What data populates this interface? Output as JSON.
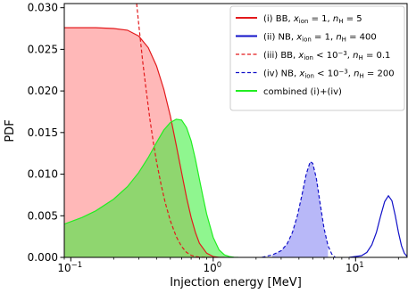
{
  "chart_data": {
    "type": "area",
    "xlabel": "Injection energy [MeV]",
    "ylabel": "PDF",
    "xscale": "log",
    "xlim": [
      0.09,
      23
    ],
    "ylim": [
      0,
      0.0305
    ],
    "x_ticks": [
      {
        "value": 0.1,
        "base": "10",
        "exp": "−1"
      },
      {
        "value": 1,
        "base": "10",
        "exp": "0"
      },
      {
        "value": 10,
        "base": "10",
        "exp": "1"
      }
    ],
    "y_ticks": [
      {
        "value": 0.0,
        "label": "0.000"
      },
      {
        "value": 0.005,
        "label": "0.005"
      },
      {
        "value": 0.01,
        "label": "0.010"
      },
      {
        "value": 0.015,
        "label": "0.015"
      },
      {
        "value": 0.02,
        "label": "0.020"
      },
      {
        "value": 0.025,
        "label": "0.025"
      },
      {
        "value": 0.03,
        "label": "0.030"
      }
    ],
    "legend_position": "top-right",
    "series": [
      {
        "key": "i",
        "name": "(i) BB, x_ion = 1, n_H = 5",
        "legend_parts": [
          [
            "(i) BB, ",
            ""
          ],
          [
            "x",
            "i"
          ],
          [
            "ion",
            "sub"
          ],
          [
            " = 1, ",
            ""
          ],
          [
            "n",
            "i"
          ],
          [
            "H",
            "sub"
          ],
          [
            " = 5",
            ""
          ]
        ],
        "color": "#e31a1c",
        "style": "solid",
        "fill": "#ff9a9a",
        "fill_opacity": 0.7,
        "x": [
          0.09,
          0.15,
          0.2,
          0.25,
          0.3,
          0.35,
          0.4,
          0.45,
          0.5,
          0.55,
          0.6,
          0.65,
          0.7,
          0.75,
          0.8,
          0.9,
          1.0,
          1.1,
          1.2
        ],
        "y": [
          0.0276,
          0.0276,
          0.0275,
          0.0273,
          0.0266,
          0.0252,
          0.023,
          0.0202,
          0.017,
          0.0135,
          0.0102,
          0.0072,
          0.0048,
          0.003,
          0.0017,
          0.0005,
          0.0001,
          0.0,
          0.0
        ]
      },
      {
        "key": "ii",
        "name": "(ii) NB, x_ion = 1, n_H = 400",
        "legend_parts": [
          [
            "(ii) NB, ",
            ""
          ],
          [
            "x",
            "i"
          ],
          [
            "ion",
            "sub"
          ],
          [
            " = 1, ",
            ""
          ],
          [
            "n",
            "i"
          ],
          [
            "H",
            "sub"
          ],
          [
            " = 400",
            ""
          ]
        ],
        "color": "#1010c8",
        "style": "solid",
        "fill": null,
        "x": [
          9,
          11,
          12,
          13,
          14,
          15,
          16,
          17,
          18,
          19,
          20,
          21,
          22,
          23
        ],
        "y": [
          0.0,
          0.0002,
          0.0006,
          0.0015,
          0.003,
          0.005,
          0.0067,
          0.0074,
          0.0068,
          0.005,
          0.003,
          0.0014,
          0.0005,
          0.0001
        ]
      },
      {
        "key": "iii",
        "name": "(iii) BB, x_ion < 10^-3, n_H = 0.1",
        "legend_parts": [
          [
            "(iii) BB, ",
            ""
          ],
          [
            "x",
            "i"
          ],
          [
            "ion",
            "sub"
          ],
          [
            " < 10",
            ""
          ],
          [
            "−3",
            "sup"
          ],
          [
            ", ",
            ""
          ],
          [
            "n",
            "i"
          ],
          [
            "H",
            "sub"
          ],
          [
            " = 0.1",
            ""
          ]
        ],
        "color": "#e31a1c",
        "style": "dashed",
        "fill": null,
        "x": [
          0.29,
          0.3,
          0.32,
          0.34,
          0.36,
          0.38,
          0.4,
          0.43,
          0.46,
          0.5,
          0.55,
          0.6,
          0.65,
          0.7,
          0.75,
          0.8,
          0.9,
          1.0
        ],
        "y": [
          0.0305,
          0.028,
          0.0235,
          0.0198,
          0.0165,
          0.0138,
          0.0115,
          0.0088,
          0.0066,
          0.0044,
          0.0025,
          0.0013,
          0.0006,
          0.00025,
          0.0001,
          3e-05,
          0.0,
          0.0
        ]
      },
      {
        "key": "iv",
        "name": "(iv) NB, x_ion < 10^-3, n_H = 200",
        "legend_parts": [
          [
            "(iv) NB, ",
            ""
          ],
          [
            "x",
            "i"
          ],
          [
            "ion",
            "sub"
          ],
          [
            " < 10",
            ""
          ],
          [
            "−3",
            "sup"
          ],
          [
            ", ",
            ""
          ],
          [
            "n",
            "i"
          ],
          [
            "H",
            "sub"
          ],
          [
            " = 200",
            ""
          ]
        ],
        "color": "#1010c8",
        "style": "dashed",
        "fill": "#a0a0f5",
        "fill_opacity": 0.75,
        "x": [
          2.2,
          2.6,
          3.0,
          3.3,
          3.6,
          3.9,
          4.2,
          4.5,
          4.8,
          5.0,
          5.3,
          5.6,
          6.0,
          6.4,
          6.8,
          7.2
        ],
        "y": [
          0.0,
          0.0003,
          0.0008,
          0.0016,
          0.003,
          0.005,
          0.0075,
          0.01,
          0.0115,
          0.0113,
          0.0095,
          0.0068,
          0.0035,
          0.0014,
          0.0004,
          0.0
        ],
        "fill_range": [
          2.5,
          6.5
        ]
      },
      {
        "key": "comb",
        "name": "combined (i)+(iv)",
        "legend_parts": [
          [
            "combined (i)+(iv)",
            ""
          ]
        ],
        "color": "#22ee22",
        "style": "solid",
        "fill": "#33ee33",
        "fill_opacity": 0.55,
        "x": [
          0.09,
          0.12,
          0.15,
          0.2,
          0.25,
          0.3,
          0.35,
          0.4,
          0.45,
          0.5,
          0.55,
          0.6,
          0.65,
          0.7,
          0.75,
          0.8,
          0.85,
          0.9,
          1.0,
          1.1,
          1.2,
          1.3,
          1.4,
          1.5
        ],
        "y": [
          0.004,
          0.0048,
          0.0056,
          0.007,
          0.0085,
          0.0102,
          0.012,
          0.0138,
          0.0153,
          0.0162,
          0.0166,
          0.0165,
          0.0156,
          0.014,
          0.0118,
          0.0094,
          0.0072,
          0.0052,
          0.0024,
          0.0009,
          0.0003,
          0.0001,
          2e-05,
          0.0
        ]
      }
    ]
  }
}
